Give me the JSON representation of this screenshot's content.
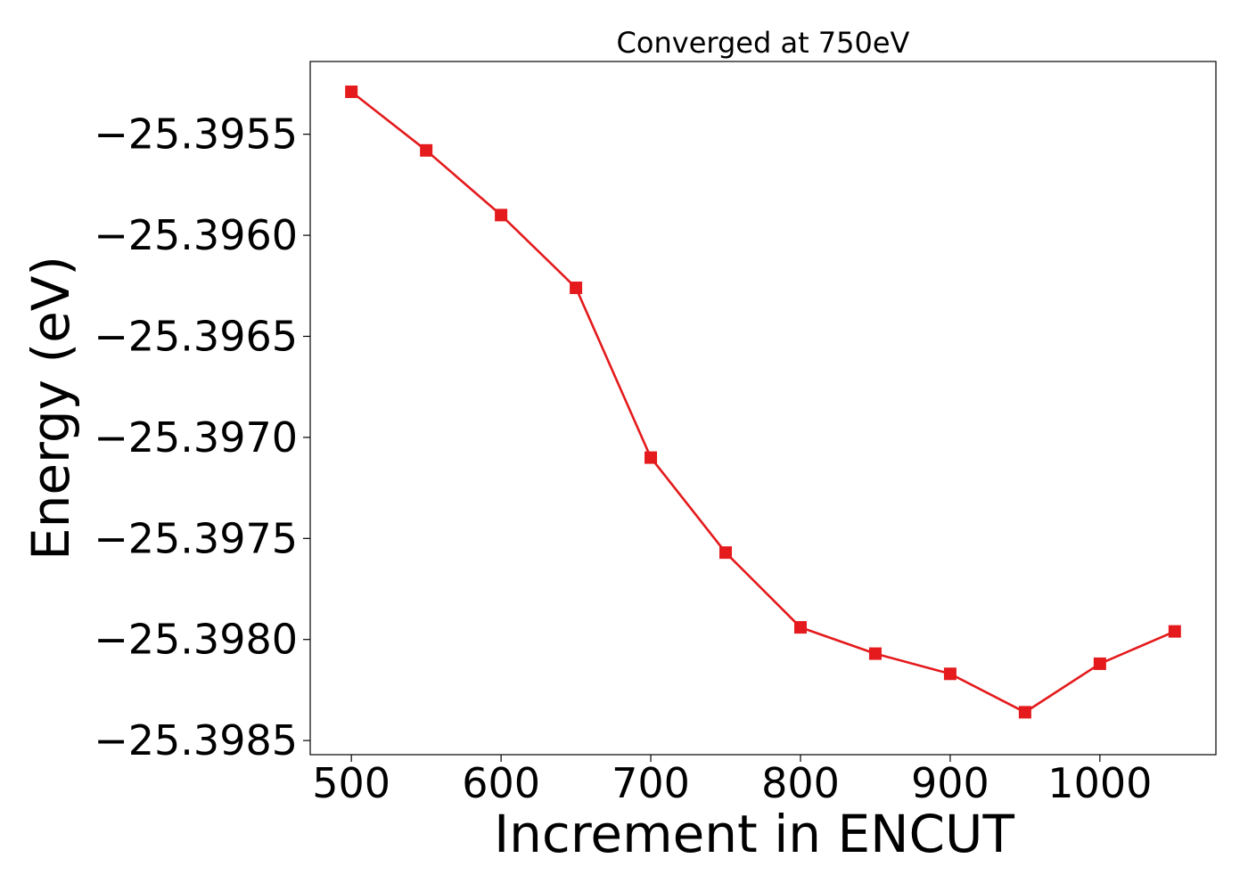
{
  "chart_data": {
    "type": "line",
    "title": "Converged at 750eV",
    "xlabel": "Increment in ENCUT",
    "ylabel": "Energy (eV)",
    "xlim": [
      472.5,
      1077.5
    ],
    "ylim": [
      -25.39857,
      -25.39514
    ],
    "xticks": [
      500,
      600,
      700,
      800,
      900,
      1000
    ],
    "xtick_labels": [
      "500",
      "600",
      "700",
      "800",
      "900",
      "1000"
    ],
    "yticks": [
      -25.3955,
      -25.396,
      -25.3965,
      -25.397,
      -25.3975,
      -25.398,
      -25.3985
    ],
    "ytick_labels": [
      "−25.3955",
      "−25.3960",
      "−25.3965",
      "−25.3970",
      "−25.3975",
      "−25.3980",
      "−25.3985"
    ],
    "grid": false,
    "legend": "none",
    "series": [
      {
        "color": "#e41a1c",
        "marker": "square",
        "x": [
          500,
          550,
          600,
          650,
          700,
          750,
          800,
          850,
          900,
          950,
          1000,
          1050
        ],
        "y": [
          -25.39529,
          -25.39558,
          -25.3959,
          -25.39626,
          -25.3971,
          -25.39757,
          -25.39794,
          -25.39807,
          -25.39817,
          -25.39836,
          -25.39812,
          -25.39796
        ]
      }
    ]
  }
}
